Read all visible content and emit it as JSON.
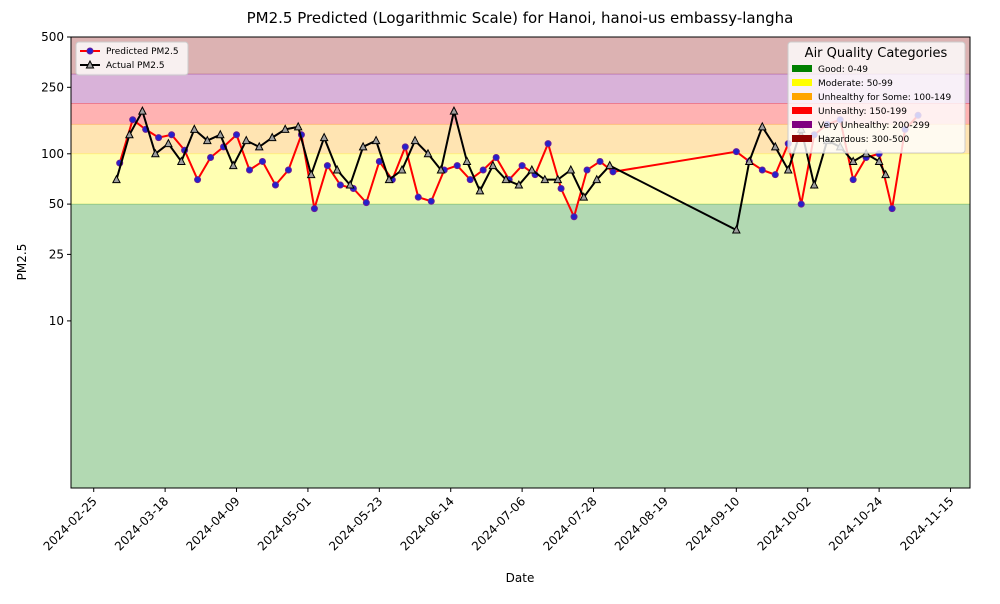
{
  "chart_data": {
    "type": "line",
    "title": "PM2.5 Predicted (Logarithmic Scale) for Hanoi, hanoi-us embassy-langha",
    "x_label": "Date",
    "y_label": "PM2.5",
    "log_y": true,
    "xlim": [
      "2024-02-18",
      "2024-11-21"
    ],
    "xticks": [
      "2024-02-25",
      "2024-03-18",
      "2024-04-09",
      "2024-05-01",
      "2024-05-23",
      "2024-06-14",
      "2024-07-06",
      "2024-07-28",
      "2024-08-19",
      "2024-09-10",
      "2024-10-02",
      "2024-10-24",
      "2024-11-15"
    ],
    "ylim": [
      1,
      500
    ],
    "yticks": [
      10,
      25,
      50,
      100,
      250,
      500
    ],
    "bands_title": "Air Quality Categories",
    "bands_legend": "upper right",
    "series_legend": "upper left",
    "bands": [
      {
        "label": "Good: 0-49",
        "color": "green",
        "max": 50
      },
      {
        "label": "Moderate: 50-99",
        "color": "yellow",
        "max": 100
      },
      {
        "label": "Unhealthy for Some: 100-149",
        "color": "orange",
        "max": 150
      },
      {
        "label": "Unhealthy: 150-199",
        "color": "red",
        "max": 200
      },
      {
        "label": "Very Unhealthy: 200-299",
        "color": "purple",
        "max": 300
      },
      {
        "label": "Hazardous: 300-500",
        "color": "darkred",
        "max": 500
      }
    ],
    "series": [
      {
        "name": "Predicted PM2.5",
        "color": "#ff0000",
        "marker": "circle",
        "marker_color": "#2222cc",
        "x": [
          "2024-03-04",
          "2024-03-08",
          "2024-03-12",
          "2024-03-16",
          "2024-03-20",
          "2024-03-24",
          "2024-03-28",
          "2024-04-01",
          "2024-04-05",
          "2024-04-09",
          "2024-04-13",
          "2024-04-17",
          "2024-04-21",
          "2024-04-25",
          "2024-04-29",
          "2024-05-03",
          "2024-05-07",
          "2024-05-11",
          "2024-05-15",
          "2024-05-19",
          "2024-05-23",
          "2024-05-27",
          "2024-05-31",
          "2024-06-04",
          "2024-06-08",
          "2024-06-12",
          "2024-06-16",
          "2024-06-20",
          "2024-06-24",
          "2024-06-28",
          "2024-07-02",
          "2024-07-06",
          "2024-07-10",
          "2024-07-14",
          "2024-07-18",
          "2024-07-22",
          "2024-07-26",
          "2024-07-30",
          "2024-08-03",
          "2024-09-10",
          "2024-09-14",
          "2024-09-18",
          "2024-09-22",
          "2024-09-26",
          "2024-09-30",
          "2024-10-04",
          "2024-10-08",
          "2024-10-12",
          "2024-10-16",
          "2024-10-20",
          "2024-10-24",
          "2024-10-28",
          "2024-11-01",
          "2024-11-05"
        ],
        "values": [
          88,
          160,
          140,
          125,
          130,
          105,
          70,
          95,
          110,
          130,
          80,
          90,
          65,
          80,
          130,
          47,
          85,
          65,
          62,
          51,
          90,
          70,
          110,
          55,
          52,
          80,
          85,
          70,
          80,
          95,
          70,
          85,
          75,
          115,
          62,
          42,
          80,
          90,
          78,
          103,
          90,
          80,
          75,
          115,
          50,
          130,
          150,
          160,
          70,
          95,
          100,
          47,
          140,
          170
        ]
      },
      {
        "name": "Actual PM2.5",
        "color": "#000000",
        "marker": "triangle",
        "marker_color": "#9e9e9e",
        "x": [
          "2024-03-03",
          "2024-03-07",
          "2024-03-11",
          "2024-03-15",
          "2024-03-19",
          "2024-03-23",
          "2024-03-27",
          "2024-03-31",
          "2024-04-04",
          "2024-04-08",
          "2024-04-12",
          "2024-04-16",
          "2024-04-20",
          "2024-04-24",
          "2024-04-28",
          "2024-05-02",
          "2024-05-06",
          "2024-05-10",
          "2024-05-14",
          "2024-05-18",
          "2024-05-22",
          "2024-05-26",
          "2024-05-30",
          "2024-06-03",
          "2024-06-07",
          "2024-06-11",
          "2024-06-15",
          "2024-06-19",
          "2024-06-23",
          "2024-06-27",
          "2024-07-01",
          "2024-07-05",
          "2024-07-09",
          "2024-07-13",
          "2024-07-17",
          "2024-07-21",
          "2024-07-25",
          "2024-07-29",
          "2024-08-02",
          "2024-09-10",
          "2024-09-14",
          "2024-09-18",
          "2024-09-22",
          "2024-09-26",
          "2024-09-30",
          "2024-10-04",
          "2024-10-08",
          "2024-10-12",
          "2024-10-16",
          "2024-10-20",
          "2024-10-24",
          "2024-10-26"
        ],
        "values": [
          70,
          130,
          180,
          100,
          115,
          90,
          140,
          120,
          130,
          85,
          120,
          110,
          125,
          140,
          145,
          75,
          125,
          80,
          65,
          110,
          120,
          70,
          80,
          120,
          100,
          80,
          180,
          90,
          60,
          85,
          70,
          65,
          80,
          70,
          70,
          80,
          55,
          70,
          85,
          35,
          90,
          145,
          110,
          80,
          140,
          65,
          120,
          110,
          90,
          100,
          90,
          75
        ]
      }
    ]
  }
}
